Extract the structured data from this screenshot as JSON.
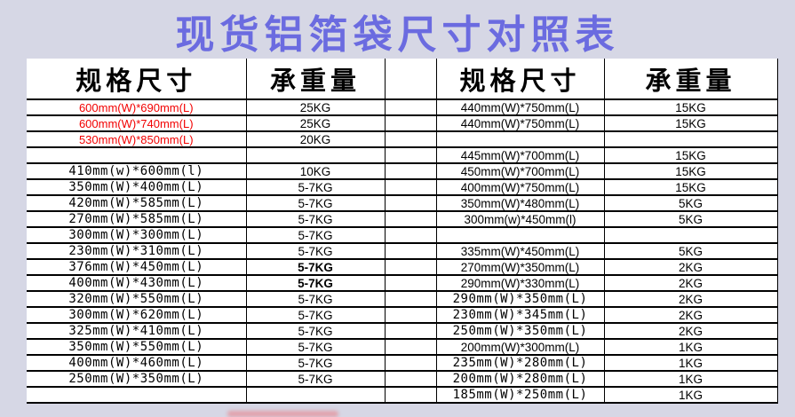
{
  "title": "现货铝箔袋尺寸对照表",
  "colors": {
    "title_text": "#6b6be0",
    "page_background": "#d6d7e5",
    "table_background": "#ffffff",
    "border": "#000000",
    "highlight_red": "#f20000"
  },
  "headers": {
    "left_size": "规格尺寸",
    "left_weight": "承重量",
    "spacer": "",
    "right_size": "规格尺寸",
    "right_weight": "承重量"
  },
  "left_rows": [
    {
      "size": "600mm(W)*690mm(L)",
      "weight": "25KG",
      "style": "red"
    },
    {
      "size": "600mm(W)*740mm(L)",
      "weight": "25KG",
      "style": "red"
    },
    {
      "size": "530mm(W)*850mm(L)",
      "weight": "20KG",
      "style": "red"
    },
    {
      "size": "",
      "weight": "",
      "style": "blank"
    },
    {
      "size": "410mm(w)*600mm(l)",
      "weight": "10KG",
      "style": "mono"
    },
    {
      "size": "350mm(W)*400mm(L)",
      "weight": "5-7KG",
      "style": "mono"
    },
    {
      "size": "420mm(W)*585mm(L)",
      "weight": "5-7KG",
      "style": "mono"
    },
    {
      "size": "270mm(W)*585mm(L)",
      "weight": "5-7KG",
      "style": "mono"
    },
    {
      "size": "300mm(W)*300mm(L)",
      "weight": "5-7KG",
      "style": "mono"
    },
    {
      "size": "230mm(W)*310mm(L)",
      "weight": "5-7KG",
      "style": "mono"
    },
    {
      "size": "376mm(W)*450mm(L)",
      "weight": "5-7KG",
      "style": "mono",
      "bold": true
    },
    {
      "size": "400mm(W)*430mm(L)",
      "weight": "5-7KG",
      "style": "mono",
      "bold": true
    },
    {
      "size": "320mm(W)*550mm(L)",
      "weight": "5-7KG",
      "style": "mono"
    },
    {
      "size": "300mm(W)*620mm(L)",
      "weight": "5-7KG",
      "style": "mono"
    },
    {
      "size": "325mm(W)*410mm(L)",
      "weight": "5-7KG",
      "style": "mono"
    },
    {
      "size": "350mm(W)*550mm(L)",
      "weight": "5-7KG",
      "style": "mono"
    },
    {
      "size": "400mm(W)*460mm(L)",
      "weight": "5-7KG",
      "style": "mono"
    },
    {
      "size": "250mm(W)*350mm(L)",
      "weight": "5-7KG",
      "style": "mono"
    },
    {
      "size": "",
      "weight": "",
      "style": "blank"
    }
  ],
  "right_rows": [
    {
      "size": "440mm(W)*750mm(L)",
      "weight": "15KG",
      "style": "sans"
    },
    {
      "size": "440mm(W)*750mm(L)",
      "weight": "15KG",
      "style": "sans"
    },
    {
      "size": "",
      "weight": "",
      "style": "blank"
    },
    {
      "size": "445mm(W)*700mm(L)",
      "weight": "15KG",
      "style": "sans"
    },
    {
      "size": "450mm(W)*700mm(L)",
      "weight": "15KG",
      "style": "sans"
    },
    {
      "size": "400mm(W)*750mm(L)",
      "weight": "15KG",
      "style": "sans"
    },
    {
      "size": "350mm(W)*480mm(L)",
      "weight": "5KG",
      "style": "sans"
    },
    {
      "size": "300mm(w)*450mm(l)",
      "weight": "5KG",
      "style": "sans"
    },
    {
      "size": "",
      "weight": "",
      "style": "blank"
    },
    {
      "size": "335mm(W)*450mm(L)",
      "weight": "5KG",
      "style": "sans"
    },
    {
      "size": "270mm(W)*350mm(L)",
      "weight": "2KG",
      "style": "sans"
    },
    {
      "size": "290mm(W)*330mm(L)",
      "weight": "2KG",
      "style": "sans"
    },
    {
      "size": "290mm(W)*350mm(L)",
      "weight": "2KG",
      "style": "mono"
    },
    {
      "size": "230mm(W)*345mm(L)",
      "weight": "2KG",
      "style": "mono"
    },
    {
      "size": "250mm(W)*350mm(L)",
      "weight": "2KG",
      "style": "mono"
    },
    {
      "size": "200mm(W)*300mm(L)",
      "weight": "1KG",
      "style": "sans"
    },
    {
      "size": "235mm(W)*280mm(L)",
      "weight": "1KG",
      "style": "mono"
    },
    {
      "size": "200mm(W)*280mm(L)",
      "weight": "1KG",
      "style": "mono"
    },
    {
      "size": "185mm(W)*250mm(L)",
      "weight": "1KG",
      "style": "mono"
    }
  ]
}
